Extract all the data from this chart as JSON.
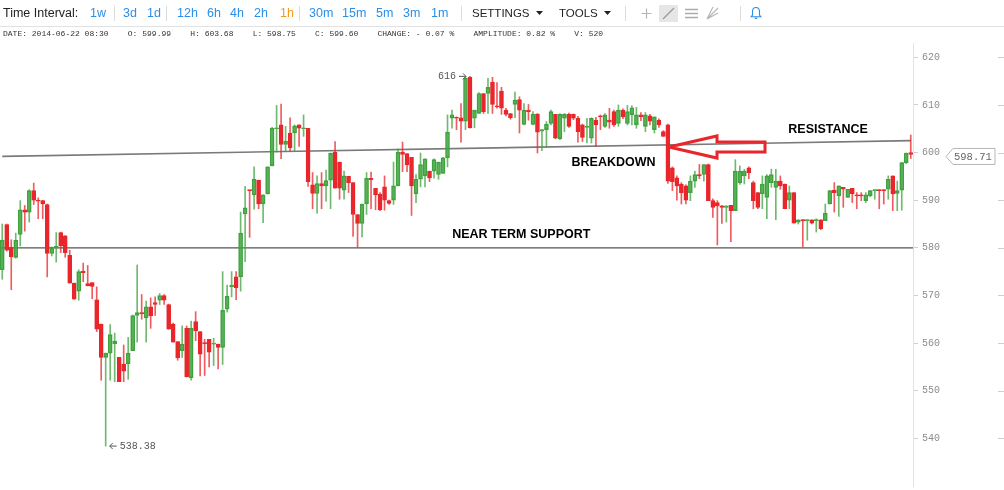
{
  "chart_data": {
    "type": "candlestick",
    "subtitle": "DATE: 2014-06-22 08:30    O: 599.99    H: 603.68    L: 598.75    C: 599.60    CHANGE: - 0.07 %    AMPLITUDE: 0.82 %    V: 520",
    "categories": [
      null,
      null,
      null,
      null,
      null,
      null,
      null,
      null,
      null,
      null,
      null,
      null,
      null,
      null,
      null,
      null,
      null,
      null,
      null,
      null,
      null,
      null,
      null,
      null,
      null,
      null,
      null,
      null,
      null,
      null,
      null,
      null,
      null,
      null,
      null,
      null,
      null,
      null,
      null,
      null,
      null,
      null,
      null,
      null,
      null,
      null,
      null,
      null,
      null,
      null,
      null,
      null,
      null,
      null,
      null,
      null,
      null,
      null,
      null,
      null,
      null,
      null,
      null,
      null,
      null,
      null,
      null,
      null,
      null,
      null,
      null,
      null,
      null,
      null,
      null,
      null,
      null,
      null,
      null,
      null,
      null,
      null,
      null,
      null,
      null,
      null,
      null,
      null,
      null,
      null,
      null,
      null,
      null,
      null,
      null,
      null,
      null,
      null,
      null,
      null,
      null,
      null,
      null,
      null,
      null,
      null,
      null,
      null,
      null,
      null,
      null,
      null,
      null,
      null,
      null,
      null,
      null,
      null,
      null,
      null,
      null,
      null,
      null,
      null,
      null,
      null,
      null,
      null,
      null,
      null,
      null,
      null,
      null,
      null,
      null,
      null,
      null,
      null,
      null,
      null,
      null,
      null,
      null,
      null,
      null,
      null,
      null,
      null,
      null,
      null,
      null,
      null,
      null,
      null,
      null,
      null,
      null,
      null,
      null,
      null,
      null,
      null,
      null,
      null,
      null,
      null,
      null,
      null,
      null,
      null,
      null,
      null,
      null,
      null,
      null,
      null,
      null,
      null,
      null,
      null,
      null,
      null,
      null,
      null,
      null,
      null,
      null,
      null,
      null,
      null,
      null,
      null,
      null,
      null,
      null,
      null,
      null,
      null,
      null,
      null,
      null,
      null,
      null
    ],
    "ohlc": [
      [
        575.4,
        585.0,
        573.4,
        581.6
      ],
      [
        584.9,
        585.0,
        579.3,
        579.5
      ],
      [
        580.1,
        581.7,
        571.2,
        578.1
      ],
      [
        578.0,
        583.1,
        577.8,
        581.6
      ],
      [
        582.8,
        589.9,
        580.4,
        588.0
      ],
      [
        588.0,
        588.9,
        583.5,
        587.5
      ],
      [
        587.5,
        592.2,
        585.4,
        592.0
      ],
      [
        592.0,
        593.6,
        589.1,
        590.0
      ],
      [
        590.0,
        590.5,
        586.1,
        589.8
      ],
      [
        589.9,
        590.0,
        586.1,
        589.2
      ],
      [
        589.1,
        589.2,
        573.9,
        578.8
      ],
      [
        578.8,
        580.2,
        578.3,
        580.0
      ],
      [
        580.0,
        583.2,
        577.0,
        580.3
      ],
      [
        583.2,
        583.3,
        579.0,
        580.4
      ],
      [
        582.5,
        582.6,
        578.0,
        579.0
      ],
      [
        578.4,
        579.5,
        572.6,
        572.6
      ],
      [
        572.6,
        572.6,
        569.2,
        569.2
      ],
      [
        570.9,
        575.4,
        569.0,
        575.0
      ],
      [
        575.1,
        576.8,
        572.9,
        574.8
      ],
      [
        572.5,
        576.3,
        572.0,
        572.0
      ],
      [
        572.7,
        572.7,
        569.3,
        571.9
      ],
      [
        569.1,
        571.8,
        562.4,
        562.9
      ],
      [
        564.0,
        564.0,
        552.2,
        557.0
      ],
      [
        557.0,
        557.9,
        538.38,
        557.9
      ],
      [
        557.9,
        563.9,
        552.2,
        561.8
      ],
      [
        559.9,
        562.1,
        551.9,
        560.4
      ],
      [
        557.0,
        557.0,
        551.9,
        551.9
      ],
      [
        555.6,
        559.6,
        551.9,
        554.1
      ],
      [
        555.7,
        561.2,
        552.4,
        557.9
      ],
      [
        558.4,
        565.9,
        558.4,
        565.8
      ],
      [
        565.8,
        576.4,
        560.2,
        566.4
      ],
      [
        566.4,
        570.2,
        565.0,
        566.2
      ],
      [
        565.3,
        568.8,
        560.2,
        567.6
      ],
      [
        567.6,
        569.5,
        563.1,
        565.7
      ],
      [
        568.5,
        569.7,
        565.8,
        568.1
      ],
      [
        569.0,
        570.4,
        568.1,
        570.0
      ],
      [
        570.0,
        570.2,
        568.1,
        569.0
      ],
      [
        568.1,
        568.2,
        562.9,
        562.9
      ],
      [
        564.0,
        564.2,
        560.2,
        560.2
      ],
      [
        560.3,
        560.3,
        556.4,
        556.9
      ],
      [
        558.4,
        563.6,
        557.0,
        559.8
      ],
      [
        563.1,
        563.6,
        552.9,
        552.9
      ],
      [
        552.7,
        564.6,
        552.2,
        563.1
      ],
      [
        564.5,
        566.6,
        560.5,
        562.6
      ],
      [
        562.4,
        562.4,
        553.1,
        557.7
      ],
      [
        560.0,
        560.8,
        553.2,
        559.9
      ],
      [
        560.8,
        560.8,
        555.0,
        558.1
      ],
      [
        559.8,
        561.0,
        555.3,
        560.0
      ],
      [
        559.8,
        559.8,
        554.6,
        559.1
      ],
      [
        559.1,
        575.0,
        555.5,
        566.9
      ],
      [
        567.1,
        572.2,
        566.5,
        569.8
      ],
      [
        571.8,
        575.0,
        569.7,
        572.2
      ],
      [
        573.9,
        575.0,
        569.1,
        571.6
      ],
      [
        573.9,
        587.5,
        570.9,
        583.1
      ],
      [
        587.1,
        592.9,
        577.1,
        588.4
      ],
      [
        592.1,
        592.1,
        582.2,
        592.0
      ],
      [
        591.1,
        597.0,
        588.1,
        594.4
      ],
      [
        594.2,
        594.2,
        588.2,
        589.2
      ],
      [
        589.2,
        591.1,
        585.3,
        591.1
      ],
      [
        591.3,
        597.0,
        591.3,
        597.0
      ],
      [
        597.2,
        605.3,
        597.2,
        605.1
      ],
      [
        605.0,
        609.9,
        600.1,
        605.1
      ],
      [
        605.8,
        610.2,
        598.7,
        601.7
      ],
      [
        601.7,
        605.5,
        600.3,
        602.4
      ],
      [
        604.1,
        607.3,
        600.3,
        601.0
      ],
      [
        604.1,
        605.8,
        600.3,
        605.6
      ],
      [
        605.8,
        605.8,
        601.3,
        605.1
      ],
      [
        605.0,
        607.9,
        603.4,
        605.1
      ],
      [
        605.1,
        605.1,
        592.9,
        593.9
      ],
      [
        593.2,
        595.8,
        588.2,
        591.4
      ],
      [
        591.4,
        595.1,
        587.3,
        593.5
      ],
      [
        593.5,
        595.8,
        588.2,
        593.0
      ],
      [
        593.0,
        596.3,
        589.8,
        594.1
      ],
      [
        594.2,
        599.9,
        588.2,
        599.9
      ],
      [
        600.1,
        602.3,
        592.5,
        592.5
      ],
      [
        598.0,
        598.0,
        590.2,
        592.5
      ],
      [
        592.1,
        596.1,
        590.2,
        595.1
      ],
      [
        595.0,
        595.0,
        591.6,
        593.7
      ],
      [
        593.7,
        593.7,
        582.4,
        587.0
      ],
      [
        587.0,
        587.0,
        580.1,
        585.1
      ],
      [
        585.1,
        589.2,
        582.3,
        589.2
      ],
      [
        589.2,
        595.8,
        587.0,
        594.6
      ],
      [
        594.6,
        595.9,
        588.2,
        594.3
      ],
      [
        592.5,
        592.5,
        588.0,
        591.1
      ],
      [
        591.3,
        591.6,
        587.8,
        588.0
      ],
      [
        592.8,
        595.1,
        587.9,
        590.0
      ],
      [
        589.9,
        590.0,
        589.1,
        589.3
      ],
      [
        590.0,
        598.0,
        589.1,
        593.0
      ],
      [
        593.0,
        600.8,
        593.0,
        600.1
      ],
      [
        600.1,
        602.2,
        596.0,
        599.6
      ],
      [
        599.8,
        599.8,
        596.0,
        597.4
      ],
      [
        599.0,
        599.0,
        586.8,
        593.0
      ],
      [
        591.3,
        595.4,
        589.5,
        594.4
      ],
      [
        594.4,
        599.9,
        592.8,
        597.5
      ],
      [
        595.1,
        598.7,
        592.8,
        598.7
      ],
      [
        596.1,
        596.1,
        593.9,
        594.7
      ],
      [
        596.1,
        598.7,
        594.6,
        598.5
      ],
      [
        595.4,
        598.0,
        594.4,
        598.0
      ],
      [
        595.6,
        599.0,
        595.6,
        598.9
      ],
      [
        598.9,
        607.9,
        597.0,
        604.3
      ],
      [
        607.2,
        608.9,
        605.1,
        607.9
      ],
      [
        607.3,
        607.5,
        604.8,
        607.2
      ],
      [
        607.3,
        610.3,
        602.2,
        606.6
      ],
      [
        606.6,
        615.8,
        604.8,
        615.6
      ],
      [
        615.8,
        616.0,
        605.1,
        605.2
      ],
      [
        607.2,
        608.9,
        605.2,
        608.9
      ],
      [
        608.2,
        612.6,
        608.2,
        612.4
      ],
      [
        612.4,
        612.4,
        608.2,
        608.6
      ],
      [
        612.4,
        615.6,
        608.2,
        613.7
      ],
      [
        614.8,
        615.8,
        608.2,
        610.1
      ],
      [
        609.7,
        614.7,
        609.3,
        609.6
      ],
      [
        612.9,
        613.7,
        608.0,
        609.3
      ],
      [
        608.9,
        609.3,
        607.7,
        608.0
      ],
      [
        608.2,
        608.2,
        607.0,
        607.3
      ],
      [
        610.1,
        612.7,
        607.3,
        611.0
      ],
      [
        611.1,
        611.7,
        604.1,
        608.9
      ],
      [
        605.9,
        610.3,
        605.8,
        608.9
      ],
      [
        608.9,
        610.1,
        606.8,
        608.6
      ],
      [
        605.9,
        608.6,
        605.8,
        608.1
      ],
      [
        608.1,
        608.2,
        599.9,
        604.3
      ],
      [
        604.5,
        604.8,
        600.4,
        604.8
      ],
      [
        604.8,
        606.5,
        601.1,
        606.0
      ],
      [
        606.1,
        608.9,
        605.8,
        608.6
      ],
      [
        608.0,
        608.0,
        602.9,
        603.0
      ],
      [
        602.9,
        608.2,
        602.7,
        608.0
      ],
      [
        607.2,
        608.2,
        604.4,
        608.0
      ],
      [
        608.0,
        608.3,
        605.3,
        605.5
      ],
      [
        608.0,
        608.1,
        606.9,
        607.2
      ],
      [
        607.2,
        607.6,
        602.2,
        604.4
      ],
      [
        605.8,
        606.0,
        602.3,
        603.2
      ],
      [
        605.3,
        607.2,
        602.0,
        605.5
      ],
      [
        603.0,
        607.3,
        602.0,
        607.2
      ],
      [
        606.8,
        607.4,
        601.3,
        605.8
      ],
      [
        607.7,
        607.9,
        604.8,
        607.5
      ],
      [
        605.5,
        608.2,
        605.3,
        607.9
      ],
      [
        606.8,
        609.3,
        605.1,
        606.4
      ],
      [
        608.6,
        608.9,
        605.5,
        605.8
      ],
      [
        606.1,
        610.0,
        605.5,
        608.9
      ],
      [
        608.9,
        609.2,
        607.1,
        607.5
      ],
      [
        606.1,
        609.9,
        605.8,
        608.6
      ],
      [
        607.9,
        609.8,
        605.8,
        609.4
      ],
      [
        605.8,
        609.5,
        605.1,
        607.9
      ],
      [
        607.9,
        608.4,
        606.7,
        607.5
      ],
      [
        605.5,
        608.4,
        604.4,
        607.9
      ],
      [
        607.7,
        608.0,
        605.8,
        606.6
      ],
      [
        604.8,
        607.5,
        604.1,
        607.5
      ],
      [
        606.8,
        607.1,
        605.3,
        605.8
      ],
      [
        604.4,
        604.6,
        603.4,
        603.4
      ],
      [
        605.8,
        606.0,
        593.5,
        594.0
      ],
      [
        596.8,
        597.0,
        592.0,
        593.9
      ],
      [
        594.7,
        595.1,
        590.0,
        593.0
      ],
      [
        593.4,
        593.7,
        589.2,
        591.6
      ],
      [
        593.0,
        593.2,
        589.2,
        590.0
      ],
      [
        591.6,
        595.1,
        589.9,
        594.0
      ],
      [
        594.0,
        596.1,
        592.7,
        595.4
      ],
      [
        595.4,
        597.5,
        594.5,
        595.1
      ],
      [
        595.4,
        597.5,
        594.0,
        597.5
      ],
      [
        597.5,
        597.6,
        589.9,
        589.9
      ],
      [
        589.9,
        590.3,
        586.4,
        588.5
      ],
      [
        589.5,
        589.9,
        580.6,
        588.8
      ],
      [
        588.8,
        588.9,
        585.1,
        588.5
      ],
      [
        588.5,
        588.8,
        585.4,
        588.8
      ],
      [
        588.9,
        588.9,
        581.3,
        587.8
      ],
      [
        587.8,
        598.5,
        587.8,
        596.1
      ],
      [
        593.7,
        597.2,
        593.3,
        596.1
      ],
      [
        595.1,
        596.5,
        593.4,
        596.1
      ],
      [
        596.8,
        597.0,
        594.5,
        595.8
      ],
      [
        593.7,
        594.0,
        588.2,
        589.9
      ],
      [
        591.6,
        591.6,
        588.2,
        588.5
      ],
      [
        591.3,
        595.1,
        588.2,
        593.4
      ],
      [
        590.6,
        595.4,
        586.1,
        595.1
      ],
      [
        593.7,
        596.5,
        592.7,
        595.4
      ],
      [
        592.7,
        596.5,
        585.9,
        594.0
      ],
      [
        594.0,
        595.1,
        592.3,
        593.0
      ],
      [
        593.4,
        593.4,
        588.2,
        588.2
      ],
      [
        590.0,
        593.0,
        588.2,
        591.6
      ],
      [
        591.6,
        591.6,
        585.2,
        585.2
      ],
      [
        585.4,
        585.9,
        585.0,
        585.9
      ],
      [
        585.9,
        585.9,
        580.2,
        585.7
      ],
      [
        585.7,
        585.9,
        581.6,
        585.9
      ],
      [
        585.9,
        585.9,
        585.0,
        585.2
      ],
      [
        585.7,
        586.1,
        583.3,
        585.9
      ],
      [
        585.9,
        585.9,
        583.8,
        584.0
      ],
      [
        585.7,
        589.2,
        585.7,
        587.3
      ],
      [
        589.2,
        592.0,
        589.2,
        592.0
      ],
      [
        592.1,
        593.7,
        587.5,
        591.6
      ],
      [
        590.9,
        593.0,
        586.6,
        593.0
      ],
      [
        592.7,
        592.7,
        588.5,
        592.3
      ],
      [
        590.6,
        592.3,
        590.6,
        592.3
      ],
      [
        592.5,
        592.5,
        589.5,
        591.3
      ],
      [
        591.1,
        591.6,
        588.2,
        590.9
      ],
      [
        591.1,
        591.6,
        589.9,
        590.9
      ],
      [
        589.9,
        591.6,
        589.5,
        591.1
      ],
      [
        590.9,
        592.0,
        590.7,
        592.0
      ],
      [
        592.0,
        592.2,
        590.2,
        592.2
      ],
      [
        592.2,
        592.2,
        588.2,
        592.0
      ],
      [
        592.2,
        592.2,
        589.2,
        592.0
      ],
      [
        592.3,
        595.1,
        590.2,
        594.4
      ],
      [
        595.1,
        595.1,
        587.8,
        591.3
      ],
      [
        591.4,
        594.0,
        587.8,
        592.0
      ],
      [
        592.1,
        597.9,
        587.9,
        597.9
      ],
      [
        597.9,
        599.9,
        597.7,
        599.9
      ],
      [
        599.99,
        603.68,
        598.75,
        599.6
      ]
    ],
    "colors": [
      "#3fa33f",
      "#e8262b",
      "#e8262b",
      "#3fa33f",
      "#3fa33f",
      "#e8262b",
      "#3fa33f",
      "#e8262b",
      "#e8262b",
      "#e8262b",
      "#e8262b",
      "#3fa33f",
      "#3fa33f",
      "#e8262b",
      "#e8262b",
      "#e8262b",
      "#e8262b",
      "#3fa33f",
      "#e8262b",
      "#e8262b",
      "#e8262b",
      "#e8262b",
      "#e8262b",
      "#3fa33f",
      "#3fa33f",
      "#3fa33f",
      "#e8262b",
      "#e8262b",
      "#3fa33f",
      "#3fa33f",
      "#3fa33f",
      "#e8262b",
      "#3fa33f",
      "#e8262b",
      "#e8262b",
      "#3fa33f",
      "#e8262b",
      "#e8262b",
      "#e8262b",
      "#e8262b",
      "#3fa33f",
      "#e8262b",
      "#3fa33f",
      "#e8262b",
      "#e8262b",
      "#e8262b",
      "#e8262b",
      "#3fa33f",
      "#e8262b",
      "#3fa33f",
      "#3fa33f",
      "#3fa33f",
      "#e8262b",
      "#3fa33f",
      "#3fa33f",
      "#e8262b",
      "#3fa33f",
      "#e8262b",
      "#3fa33f",
      "#3fa33f",
      "#3fa33f",
      "#3fa33f",
      "#e8262b",
      "#3fa33f",
      "#e8262b",
      "#3fa33f",
      "#e8262b",
      "#3fa33f",
      "#e8262b",
      "#e8262b",
      "#3fa33f",
      "#e8262b",
      "#3fa33f",
      "#3fa33f",
      "#e8262b",
      "#e8262b",
      "#3fa33f",
      "#e8262b",
      "#e8262b",
      "#e8262b",
      "#3fa33f",
      "#3fa33f",
      "#e8262b",
      "#e8262b",
      "#e8262b",
      "#e8262b",
      "#e8262b",
      "#3fa33f",
      "#3fa33f",
      "#e8262b",
      "#e8262b",
      "#e8262b",
      "#3fa33f",
      "#3fa33f",
      "#3fa33f",
      "#e8262b",
      "#3fa33f",
      "#3fa33f",
      "#3fa33f",
      "#3fa33f",
      "#3fa33f",
      "#e8262b",
      "#e8262b",
      "#3fa33f",
      "#e8262b",
      "#3fa33f",
      "#3fa33f",
      "#e8262b",
      "#3fa33f",
      "#e8262b",
      "#e8262b",
      "#e8262b",
      "#e8262b",
      "#e8262b",
      "#3fa33f",
      "#e8262b",
      "#3fa33f",
      "#e8262b",
      "#3fa33f",
      "#e8262b",
      "#3fa33f",
      "#3fa33f",
      "#3fa33f",
      "#e8262b",
      "#3fa33f",
      "#3fa33f",
      "#e8262b",
      "#e8262b",
      "#e8262b",
      "#e8262b",
      "#3fa33f",
      "#3fa33f",
      "#e8262b",
      "#e8262b",
      "#3fa33f",
      "#e8262b",
      "#e8262b",
      "#3fa33f",
      "#e8262b",
      "#3fa33f",
      "#3fa33f",
      "#3fa33f",
      "#e8262b",
      "#3fa33f",
      "#e8262b",
      "#3fa33f",
      "#e8262b",
      "#e8262b",
      "#e8262b",
      "#e8262b",
      "#e8262b",
      "#e8262b",
      "#e8262b",
      "#3fa33f",
      "#3fa33f",
      "#e8262b",
      "#3fa33f",
      "#e8262b",
      "#e8262b",
      "#e8262b",
      "#e8262b",
      "#3fa33f",
      "#e8262b",
      "#3fa33f",
      "#3fa33f",
      "#3fa33f",
      "#e8262b",
      "#e8262b",
      "#e8262b",
      "#3fa33f",
      "#3fa33f",
      "#3fa33f",
      "#3fa33f",
      "#e8262b",
      "#e8262b",
      "#3fa33f",
      "#e8262b",
      "#3fa33f",
      "#e8262b",
      "#3fa33f",
      "#e8262b",
      "#3fa33f",
      "#e8262b",
      "#3fa33f",
      "#3fa33f",
      "#e8262b",
      "#3fa33f",
      "#e8262b",
      "#3fa33f",
      "#e8262b",
      "#e8262b",
      "#e8262b",
      "#3fa33f",
      "#3fa33f",
      "#3fa33f",
      "#e8262b",
      "#e8262b",
      "#3fa33f",
      "#e8262b",
      "#3fa33f",
      "#3fa33f",
      "#3fa33f",
      "#e8262b"
    ],
    "series": [
      {
        "type": "line",
        "name": "RESISTANCE",
        "color": "#7a7a7a",
        "values": [
          599.2,
          null,
          null,
          null,
          null,
          null,
          null,
          null,
          null,
          null,
          null,
          null,
          null,
          null,
          null,
          null,
          null,
          null,
          null,
          null,
          null,
          null,
          null,
          null,
          null,
          null,
          null,
          null,
          null,
          null,
          null,
          null,
          null,
          null,
          null,
          null,
          null,
          null,
          null,
          null,
          null,
          null,
          null,
          null,
          null,
          null,
          null,
          null,
          null,
          null,
          null,
          null,
          null,
          null,
          null,
          null,
          null,
          null,
          null,
          null,
          null,
          null,
          null,
          null,
          null,
          null,
          null,
          null,
          null,
          null,
          null,
          null,
          null,
          null,
          null,
          null,
          null,
          null,
          null,
          null,
          null,
          null,
          null,
          null,
          null,
          null,
          null,
          null,
          null,
          null,
          null,
          null,
          null,
          null,
          null,
          null,
          null,
          null,
          null,
          null,
          null,
          null,
          null,
          null,
          null,
          null,
          null,
          null,
          null,
          null,
          null,
          null,
          null,
          null,
          null,
          null,
          null,
          null,
          null,
          null,
          null,
          null,
          null,
          null,
          null,
          null,
          null,
          null,
          null,
          null,
          null,
          null,
          null,
          null,
          null,
          null,
          null,
          null,
          null,
          null,
          null,
          null,
          null,
          null,
          null,
          null,
          null,
          null,
          null,
          null,
          null,
          null,
          null,
          null,
          null,
          null,
          null,
          null,
          null,
          null,
          null,
          null,
          null,
          null,
          null,
          null,
          null,
          null,
          null,
          null,
          null,
          null,
          null,
          null,
          null,
          null,
          null,
          null,
          null,
          null,
          null,
          null,
          null,
          null,
          null,
          null,
          null,
          null,
          null,
          null,
          null,
          null,
          null,
          null,
          null,
          null,
          null,
          null,
          null,
          null,
          null,
          null,
          602.5
        ]
      }
    ],
    "ref_lines": [
      {
        "axis": "y",
        "value": 580,
        "label": "NEAR TERM SUPPORT",
        "color": "#555555"
      }
    ],
    "ylim": [
      530,
      623
    ],
    "yticks": [
      540,
      550,
      560,
      570,
      580,
      590,
      600,
      610,
      620
    ],
    "tick_labels": "y",
    "annotations": [
      "Time Interval:",
      "1w",
      "3d",
      "1d",
      "12h",
      "6h",
      "4h",
      "2h",
      "1h",
      "30m",
      "15m",
      "5m",
      "3m",
      "1m",
      "SETTINGS",
      "TOOLS",
      "616",
      "538.38",
      "598.71",
      "BREAKDOWN"
    ]
  }
}
